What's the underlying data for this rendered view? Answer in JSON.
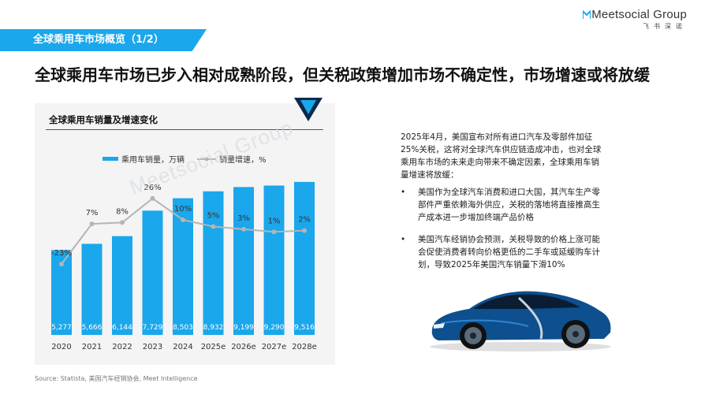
{
  "brand": {
    "name": "Meetsocial Group",
    "sub": "飞书深诺"
  },
  "section": {
    "title": "全球乘用车市场概览（1/2）"
  },
  "headline": "全球乘用车市场已步入相对成熟阶段，但关税政策增加市场不确定性，市场增速或将放缓",
  "chart_card": {
    "title": "全球乘用车销量及增速变化"
  },
  "watermark": "Meetsocial Group",
  "chart_data": {
    "type": "bar",
    "title": "全球乘用车销量及增速变化",
    "categories": [
      "2020",
      "2021",
      "2022",
      "2023",
      "2024",
      "2025e",
      "2026e",
      "2027e",
      "2028e"
    ],
    "series": [
      {
        "name": "乘用车销量，万辆",
        "type": "bar",
        "values": [
          5277,
          5666,
          6144,
          7729,
          8503,
          8932,
          9199,
          9290,
          9516
        ],
        "labels": [
          "5,277",
          "5,666",
          "6,144",
          "7,729",
          "8,503",
          "8,932",
          "9,199",
          "9,290",
          "9,516"
        ],
        "color": "#1aa7ec"
      },
      {
        "name": "销量增速，%",
        "type": "line",
        "values": [
          -23,
          7,
          8,
          26,
          10,
          5,
          3,
          1,
          2
        ],
        "labels": [
          "-23%",
          "7%",
          "8%",
          "26%",
          "10%",
          "5%",
          "3%",
          "1%",
          "2%"
        ],
        "color": "#b5b5b5"
      }
    ],
    "ylim": [
      0,
      10000
    ],
    "y2lim": [
      -60,
      40
    ],
    "grid": false,
    "legend": "top-left"
  },
  "body": {
    "intro": "2025年4月，美国宣布对所有进口汽车及零部件加征25%关税，这将对全球汽车供应链造成冲击，也对全球乘用车市场的未来走向带来不确定因素，全球乘用车销量增速将放缓：",
    "bullets": [
      "美国作为全球汽车消费和进口大国，其汽车生产零部件严重依赖海外供应，关税的落地将直接推高生产成本进一步增加终端产品价格",
      "美国汽车经销协会预测，关税导致的价格上涨可能会促使消费者转向价格更低的二手车或延缓购车计划，导致2025年美国汽车销量下滑10%"
    ]
  },
  "source": "Source: Statista, 美国汽车经销协会, Meet Intelligence",
  "colors": {
    "accent": "#1aa7ec",
    "line": "#b5b5b5",
    "dark_navy": "#0b2a4a"
  }
}
